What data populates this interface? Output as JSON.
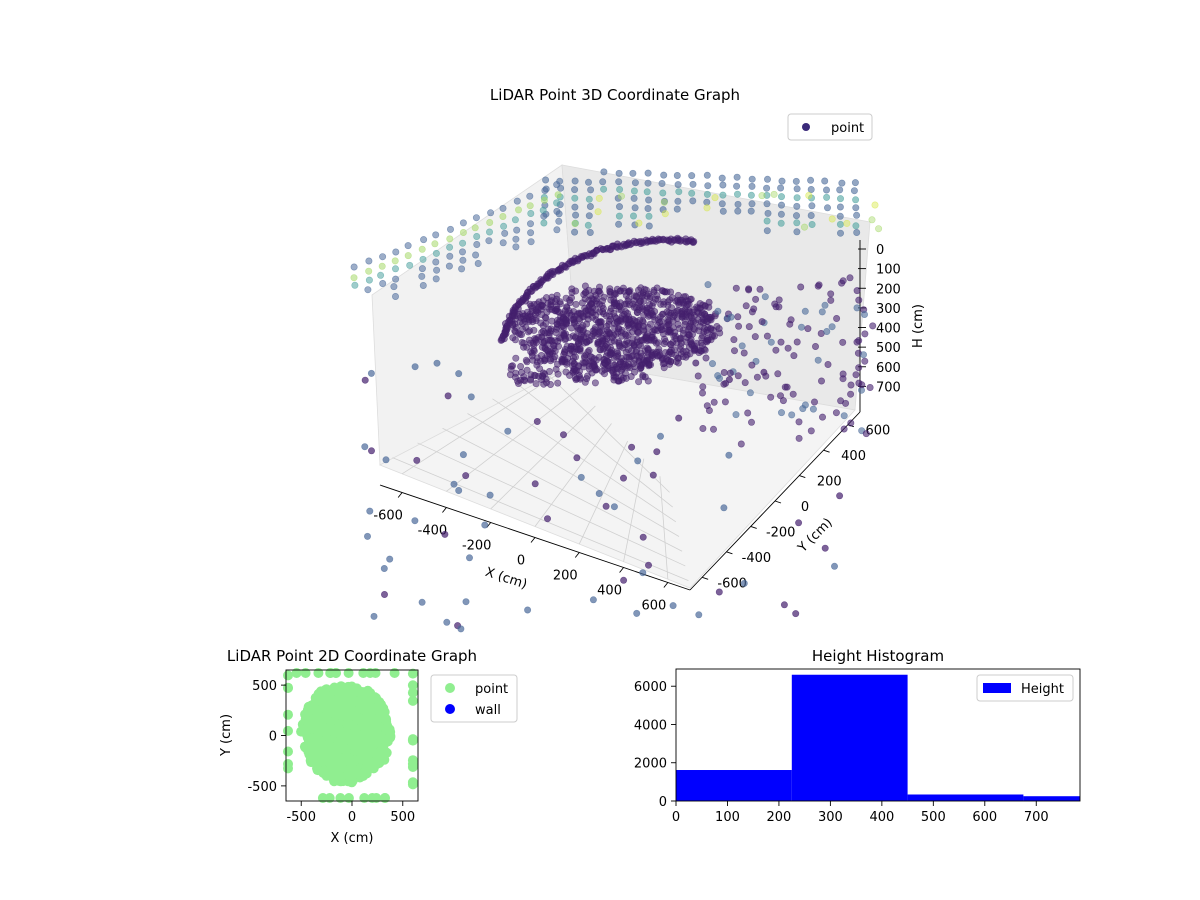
{
  "chart_data": [
    {
      "type": "scatter3d",
      "title": "LiDAR Point 3D Coordinate Graph",
      "xlabel": "X (cm)",
      "ylabel": "Y (cm)",
      "zlabel": "H (cm)",
      "xlim": [
        -700,
        700
      ],
      "ylim": [
        -700,
        700
      ],
      "zlim": [
        0,
        780
      ],
      "z_axis_inverted": true,
      "x_ticks": [
        "-600",
        "-400",
        "-200",
        "0",
        "200",
        "400",
        "600"
      ],
      "y_ticks": [
        "-600",
        "-400",
        "-200",
        "0",
        "200",
        "400",
        "600"
      ],
      "z_ticks": [
        "0",
        "100",
        "200",
        "300",
        "400",
        "500",
        "600",
        "700"
      ],
      "colormap": "viridis",
      "grid": true,
      "legend": {
        "position": "top-right",
        "entries": [
          {
            "label": "point",
            "color": "#3b2a7a"
          }
        ]
      },
      "series": [
        {
          "name": "point",
          "description_points": [
            {
              "x": -100,
              "y": 0,
              "z": 330
            },
            {
              "x": -400,
              "y": 300,
              "z": 200
            },
            {
              "x": 400,
              "y": -500,
              "z": 450
            }
          ]
        }
      ]
    },
    {
      "type": "scatter",
      "title": "LiDAR Point 2D Coordinate Graph",
      "xlabel": "X (cm)",
      "ylabel": "Y (cm)",
      "xlim": [
        -650,
        650
      ],
      "ylim": [
        -650,
        650
      ],
      "x_ticks": [
        "-500",
        "0",
        "500"
      ],
      "y_ticks": [
        "-500",
        "0",
        "500"
      ],
      "legend": {
        "position": "outside-right",
        "entries": [
          {
            "label": "point",
            "color": "#90ee90"
          },
          {
            "label": "wall",
            "color": "#0000ff"
          }
        ]
      },
      "series": [
        {
          "name": "point",
          "color": "#90ee90"
        },
        {
          "name": "wall",
          "color": "#0000ff"
        }
      ]
    },
    {
      "type": "bar",
      "title": "Height Histogram",
      "xlim": [
        0,
        785
      ],
      "ylim": [
        0,
        6900
      ],
      "x_ticks": [
        "0",
        "100",
        "200",
        "300",
        "400",
        "500",
        "600",
        "700"
      ],
      "y_ticks": [
        "0",
        "2000",
        "4000",
        "6000"
      ],
      "bins": [
        {
          "start": 0,
          "end": 225,
          "count": 1620
        },
        {
          "start": 225,
          "end": 450,
          "count": 6600
        },
        {
          "start": 450,
          "end": 675,
          "count": 340
        },
        {
          "start": 675,
          "end": 785,
          "count": 250
        }
      ],
      "color": "#0000ff",
      "legend": {
        "position": "top-right",
        "entries": [
          {
            "label": "Height",
            "color": "#0000ff"
          }
        ]
      }
    }
  ]
}
